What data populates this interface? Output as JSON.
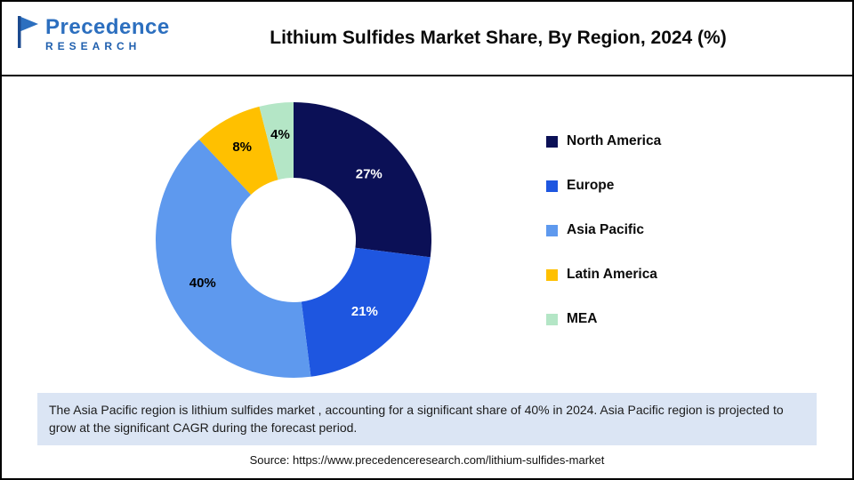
{
  "header": {
    "logo": {
      "name": "Precedence",
      "sub": "RESEARCH"
    },
    "title": "Lithium Sulfides Market Share, By Region, 2024 (%)"
  },
  "chart_data": {
    "type": "pie",
    "donut": true,
    "title": "Lithium Sulfides Market Share, By Region, 2024 (%)",
    "categories": [
      "North America",
      "Europe",
      "Asia Pacific",
      "Latin America",
      "MEA"
    ],
    "values": [
      27,
      21,
      40,
      8,
      4
    ],
    "value_labels": [
      "27%",
      "21%",
      "40%",
      "8%",
      "4%"
    ],
    "colors": [
      "#0b1056",
      "#1E56E0",
      "#5E99EE",
      "#FFC000",
      "#B4E6C6"
    ],
    "label_colors": [
      "#ffffff",
      "#ffffff",
      "#000000",
      "#000000",
      "#000000"
    ],
    "legend_position": "right",
    "start_angle_deg": 0,
    "direction": "clockwise"
  },
  "note": "The Asia Pacific region is lithium sulfides market , accounting for a significant share of 40% in 2024. Asia Pacific region is projected to grow at the significant CAGR during the forecast period.",
  "source": "Source: https://www.precedenceresearch.com/lithium-sulfides-market"
}
